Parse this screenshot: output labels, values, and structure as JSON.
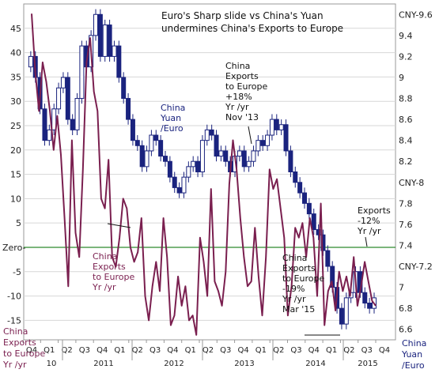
{
  "chart_data": {
    "type": "line",
    "title_lines": [
      "Euro's Sharp slide vs China's Yuan",
      "undermines China's Exports to Europe"
    ],
    "left_axis": {
      "ticks": [
        45,
        40,
        35,
        30,
        25,
        20,
        15,
        10,
        5,
        -5,
        -10,
        -15
      ],
      "zero_label": "Zero-",
      "range": [
        -19,
        50
      ],
      "label_lines": [
        "China",
        "Exports",
        "to Europe",
        "Yr /yr"
      ]
    },
    "right_axis": {
      "ticks": [
        {
          "value": 9.6,
          "label": "CNY-9.6"
        },
        {
          "value": 9.4,
          "label": "9.4"
        },
        {
          "value": 9.2,
          "label": "9.2"
        },
        {
          "value": 9.0,
          "label": "9"
        },
        {
          "value": 8.8,
          "label": "8.8"
        },
        {
          "value": 8.6,
          "label": "8.6"
        },
        {
          "value": 8.4,
          "label": "8.4"
        },
        {
          "value": 8.2,
          "label": "8.2"
        },
        {
          "value": 8.0,
          "label": "CNY-8"
        },
        {
          "value": 7.8,
          "label": "7.8"
        },
        {
          "value": 7.6,
          "label": "7.6"
        },
        {
          "value": 7.4,
          "label": "7.4"
        },
        {
          "value": 7.2,
          "label": "CNY-7.2"
        },
        {
          "value": 7.0,
          "label": "7"
        },
        {
          "value": 6.8,
          "label": "6.8"
        },
        {
          "value": 6.6,
          "label": "6.6"
        }
      ],
      "label_lines": [
        "China",
        "Yuan",
        "/Euro"
      ]
    },
    "x_axis": {
      "quarters": [
        "Q4",
        "Q1",
        "Q2",
        "Q3",
        "Q4",
        "Q1",
        "Q2",
        "Q3",
        "Q4",
        "Q1",
        "Q2",
        "Q3",
        "Q4",
        "Q1",
        "Q2",
        "Q3",
        "Q4",
        "Q1",
        "Q2",
        "Q3",
        "Q4"
      ],
      "years": [
        "10",
        "2011",
        "2012",
        "2013",
        "2014",
        "2015"
      ]
    },
    "series": [
      {
        "name": "China Exports to Europe Yr /yr",
        "color": "#7a1f4f",
        "values": [
          48,
          36,
          28,
          38,
          34,
          28,
          20,
          27,
          19,
          6,
          -8,
          22,
          3,
          -2,
          16,
          38,
          43,
          32,
          28,
          10,
          8,
          18,
          -2,
          -4,
          2,
          10,
          8,
          0,
          -3,
          -1,
          6,
          -10,
          -15,
          -8,
          -3,
          -9,
          6,
          -2,
          -16,
          -14,
          -6,
          -12,
          -8,
          -15,
          -14,
          -18,
          2,
          -3,
          -10,
          12,
          -7,
          -9,
          -12,
          -5,
          13,
          22,
          16,
          6,
          -2,
          -8,
          -7,
          4,
          -6,
          -14,
          -2,
          16,
          12,
          14,
          8,
          2,
          -14,
          -8,
          4,
          2,
          5,
          -2,
          6,
          2,
          -10,
          9,
          -16,
          -9,
          -7,
          -13,
          -5,
          -9,
          -6,
          -10,
          -2,
          -12,
          -8,
          -3,
          -7,
          -11,
          -12
        ]
      },
      {
        "name": "China Yuan /Euro",
        "color": "#1a237e",
        "values": [
          9.1,
          9.2,
          9.0,
          8.7,
          8.4,
          8.5,
          8.7,
          8.9,
          9.0,
          8.6,
          8.5,
          8.8,
          9.3,
          9.1,
          9.4,
          9.6,
          9.2,
          9.5,
          9.2,
          9.3,
          9.0,
          8.8,
          8.6,
          8.4,
          8.35,
          8.15,
          8.3,
          8.45,
          8.4,
          8.25,
          8.2,
          8.05,
          7.95,
          7.9,
          8.05,
          8.15,
          8.2,
          8.1,
          8.4,
          8.5,
          8.45,
          8.25,
          8.3,
          8.2,
          8.1,
          8.25,
          8.3,
          8.15,
          8.2,
          8.3,
          8.4,
          8.35,
          8.45,
          8.6,
          8.5,
          8.55,
          8.3,
          8.1,
          8.0,
          7.9,
          7.8,
          7.7,
          7.55,
          7.5,
          7.35,
          7.2,
          7.0,
          6.8,
          6.65,
          6.9,
          6.95,
          7.15,
          6.95,
          6.85,
          6.8,
          6.9
        ]
      }
    ],
    "annotations": {
      "nov13": [
        "China",
        "Exports",
        "to Europe",
        "+18%",
        "Yr /yr",
        "Nov '13"
      ],
      "mar15": [
        "China",
        "Exports",
        "to Europe",
        "-19%",
        "Yr /yr",
        "Mar '15"
      ],
      "latest": [
        "Exports",
        "-12%",
        "Yr /yr"
      ],
      "yuan_label": [
        "China",
        "Yuan",
        "/Euro"
      ],
      "exports_label": [
        "China",
        "Exports",
        "to Europe",
        "Yr /yr"
      ]
    },
    "colors": {
      "exports": "#7a1f4f",
      "yuan": "#1a237e",
      "zero_line": "#2e8b2e"
    }
  }
}
